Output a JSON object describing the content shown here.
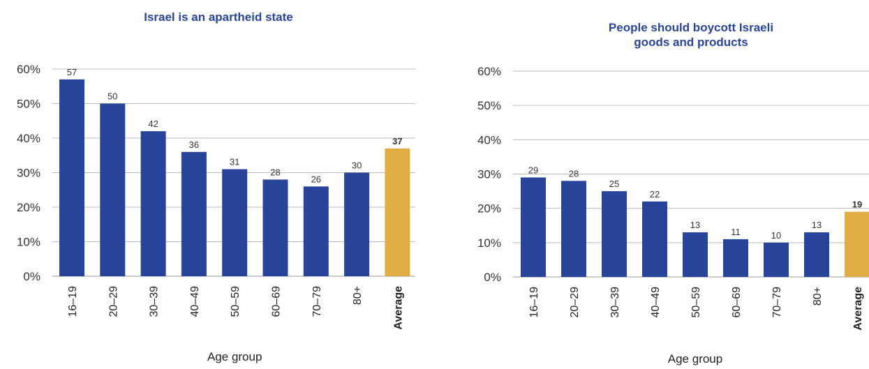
{
  "chart_data": [
    {
      "type": "bar",
      "title": [
        "Israel is an apartheid state"
      ],
      "x_label": "Age group",
      "categories": [
        "16–19",
        "20–29",
        "30–39",
        "40–49",
        "50–59",
        "60–69",
        "70–79",
        "80+",
        "Average"
      ],
      "values": [
        57,
        50,
        42,
        36,
        31,
        28,
        26,
        30,
        37
      ],
      "colors": [
        "#27449a",
        "#27449a",
        "#27449a",
        "#27449a",
        "#27449a",
        "#27449a",
        "#27449a",
        "#27449a",
        "#e0ac46"
      ],
      "ylim": [
        0,
        60
      ],
      "yticks": [
        {
          "value": 0,
          "label": "0%"
        },
        {
          "value": 10,
          "label": "10%"
        },
        {
          "value": 20,
          "label": "20%"
        },
        {
          "value": 30,
          "label": "30%"
        },
        {
          "value": 40,
          "label": "40%"
        },
        {
          "value": 50,
          "label": "50%"
        },
        {
          "value": 60,
          "label": "60%"
        }
      ],
      "grid": true
    },
    {
      "type": "bar",
      "title": [
        "People should boycott Israeli",
        "goods and products"
      ],
      "x_label": "Age group",
      "categories": [
        "16–19",
        "20–29",
        "30–39",
        "40–49",
        "50–59",
        "60–69",
        "70–79",
        "80+",
        "Average"
      ],
      "values": [
        29,
        28,
        25,
        22,
        13,
        11,
        10,
        13,
        19
      ],
      "colors": [
        "#27449a",
        "#27449a",
        "#27449a",
        "#27449a",
        "#27449a",
        "#27449a",
        "#27449a",
        "#27449a",
        "#e0ac46"
      ],
      "ylim": [
        0,
        60
      ],
      "yticks": [
        {
          "value": 0,
          "label": "0%"
        },
        {
          "value": 10,
          "label": "10%"
        },
        {
          "value": 20,
          "label": "20%"
        },
        {
          "value": 30,
          "label": "30%"
        },
        {
          "value": 40,
          "label": "40%"
        },
        {
          "value": 50,
          "label": "50%"
        },
        {
          "value": 60,
          "label": "60%"
        }
      ],
      "grid": true
    }
  ]
}
